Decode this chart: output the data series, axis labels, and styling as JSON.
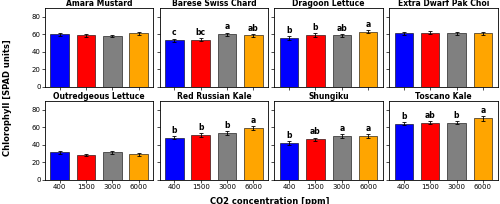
{
  "subplots": [
    {
      "title": "Amara Mustard",
      "values": [
        60,
        59,
        58,
        61
      ],
      "errors": [
        1.5,
        1.5,
        1.5,
        2.0
      ],
      "letters": [
        "",
        "",
        "",
        ""
      ]
    },
    {
      "title": "Barese Swiss Chard",
      "values": [
        53,
        54,
        60,
        59
      ],
      "errors": [
        2.0,
        2.0,
        2.0,
        1.5
      ],
      "letters": [
        "c",
        "bc",
        "a",
        "ab"
      ]
    },
    {
      "title": "Dragoon Lettuce",
      "values": [
        56,
        59,
        59,
        63
      ],
      "errors": [
        2.0,
        2.0,
        1.5,
        2.0
      ],
      "letters": [
        "b",
        "b",
        "ab",
        "a"
      ]
    },
    {
      "title": "Extra Dwarf Pak Choi",
      "values": [
        61,
        62,
        61,
        61
      ],
      "errors": [
        1.5,
        1.5,
        1.5,
        1.5
      ],
      "letters": [
        "",
        "",
        "",
        ""
      ]
    },
    {
      "title": "Outredgeous Lettuce",
      "values": [
        31,
        28,
        31,
        29
      ],
      "errors": [
        1.5,
        1.5,
        2.0,
        1.5
      ],
      "letters": [
        "",
        "",
        "",
        ""
      ]
    },
    {
      "title": "Red Russian Kale",
      "values": [
        48,
        51,
        53,
        59
      ],
      "errors": [
        2.0,
        2.0,
        2.0,
        2.0
      ],
      "letters": [
        "b",
        "b",
        "b",
        "a"
      ]
    },
    {
      "title": "Shungiku",
      "values": [
        42,
        46,
        50,
        50
      ],
      "errors": [
        2.0,
        2.0,
        2.0,
        2.0
      ],
      "letters": [
        "b",
        "ab",
        "a",
        "a"
      ]
    },
    {
      "title": "Toscano Kale",
      "values": [
        64,
        65,
        65,
        70
      ],
      "errors": [
        2.0,
        2.0,
        2.0,
        2.5
      ],
      "letters": [
        "b",
        "ab",
        "b",
        "a"
      ]
    }
  ],
  "bar_colors": [
    "#0000ff",
    "#ff0000",
    "#808080",
    "#ffa500"
  ],
  "x_labels": [
    "400",
    "1500",
    "3000",
    "6000"
  ],
  "xlabel": "CO2 concentration [ppm]",
  "ylabel": "Chlorophyll [SPAD units]",
  "ylim": [
    0,
    90
  ],
  "yticks": [
    0,
    20,
    40,
    60,
    80
  ],
  "background_color": "#ffffff",
  "letter_fontsize": 5.5,
  "title_fontsize": 5.5,
  "tick_fontsize": 5.0,
  "label_fontsize": 6.0
}
